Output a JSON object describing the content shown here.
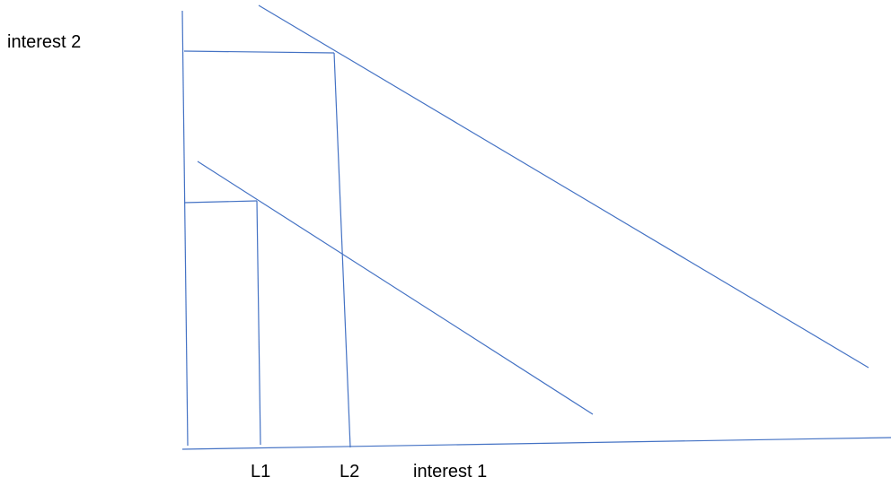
{
  "diagram": {
    "y_axis_label": "interest 2",
    "x_axis_label": "interest 1",
    "l1_label": "L1",
    "l2_label": "L2",
    "line_color": "#4472c4"
  }
}
